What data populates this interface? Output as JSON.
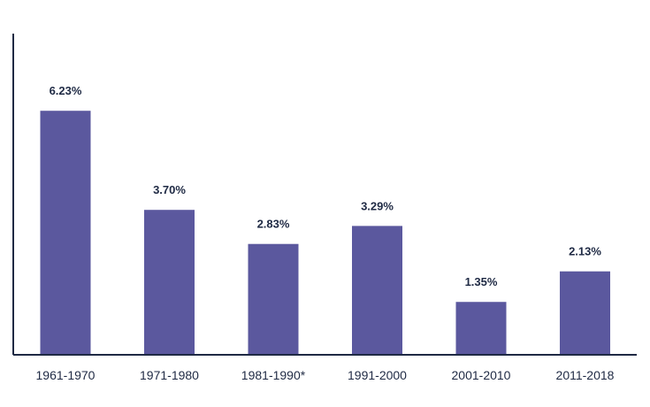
{
  "chart_data": {
    "type": "bar",
    "categories": [
      "1961-1970",
      "1971-1980",
      "1981-1990*",
      "1991-2000",
      "2001-2010",
      "2011-2018"
    ],
    "values": [
      6.23,
      3.7,
      2.83,
      3.29,
      1.35,
      2.13
    ],
    "value_labels": [
      "6.23%",
      "3.70%",
      "2.83%",
      "3.29%",
      "1.35%",
      "2.13%"
    ],
    "ylim": [
      0,
      8.2
    ],
    "grid": false,
    "colors": {
      "bar": "#5b589e",
      "axis": "#1f2a44",
      "text": "#1f2a44"
    }
  }
}
